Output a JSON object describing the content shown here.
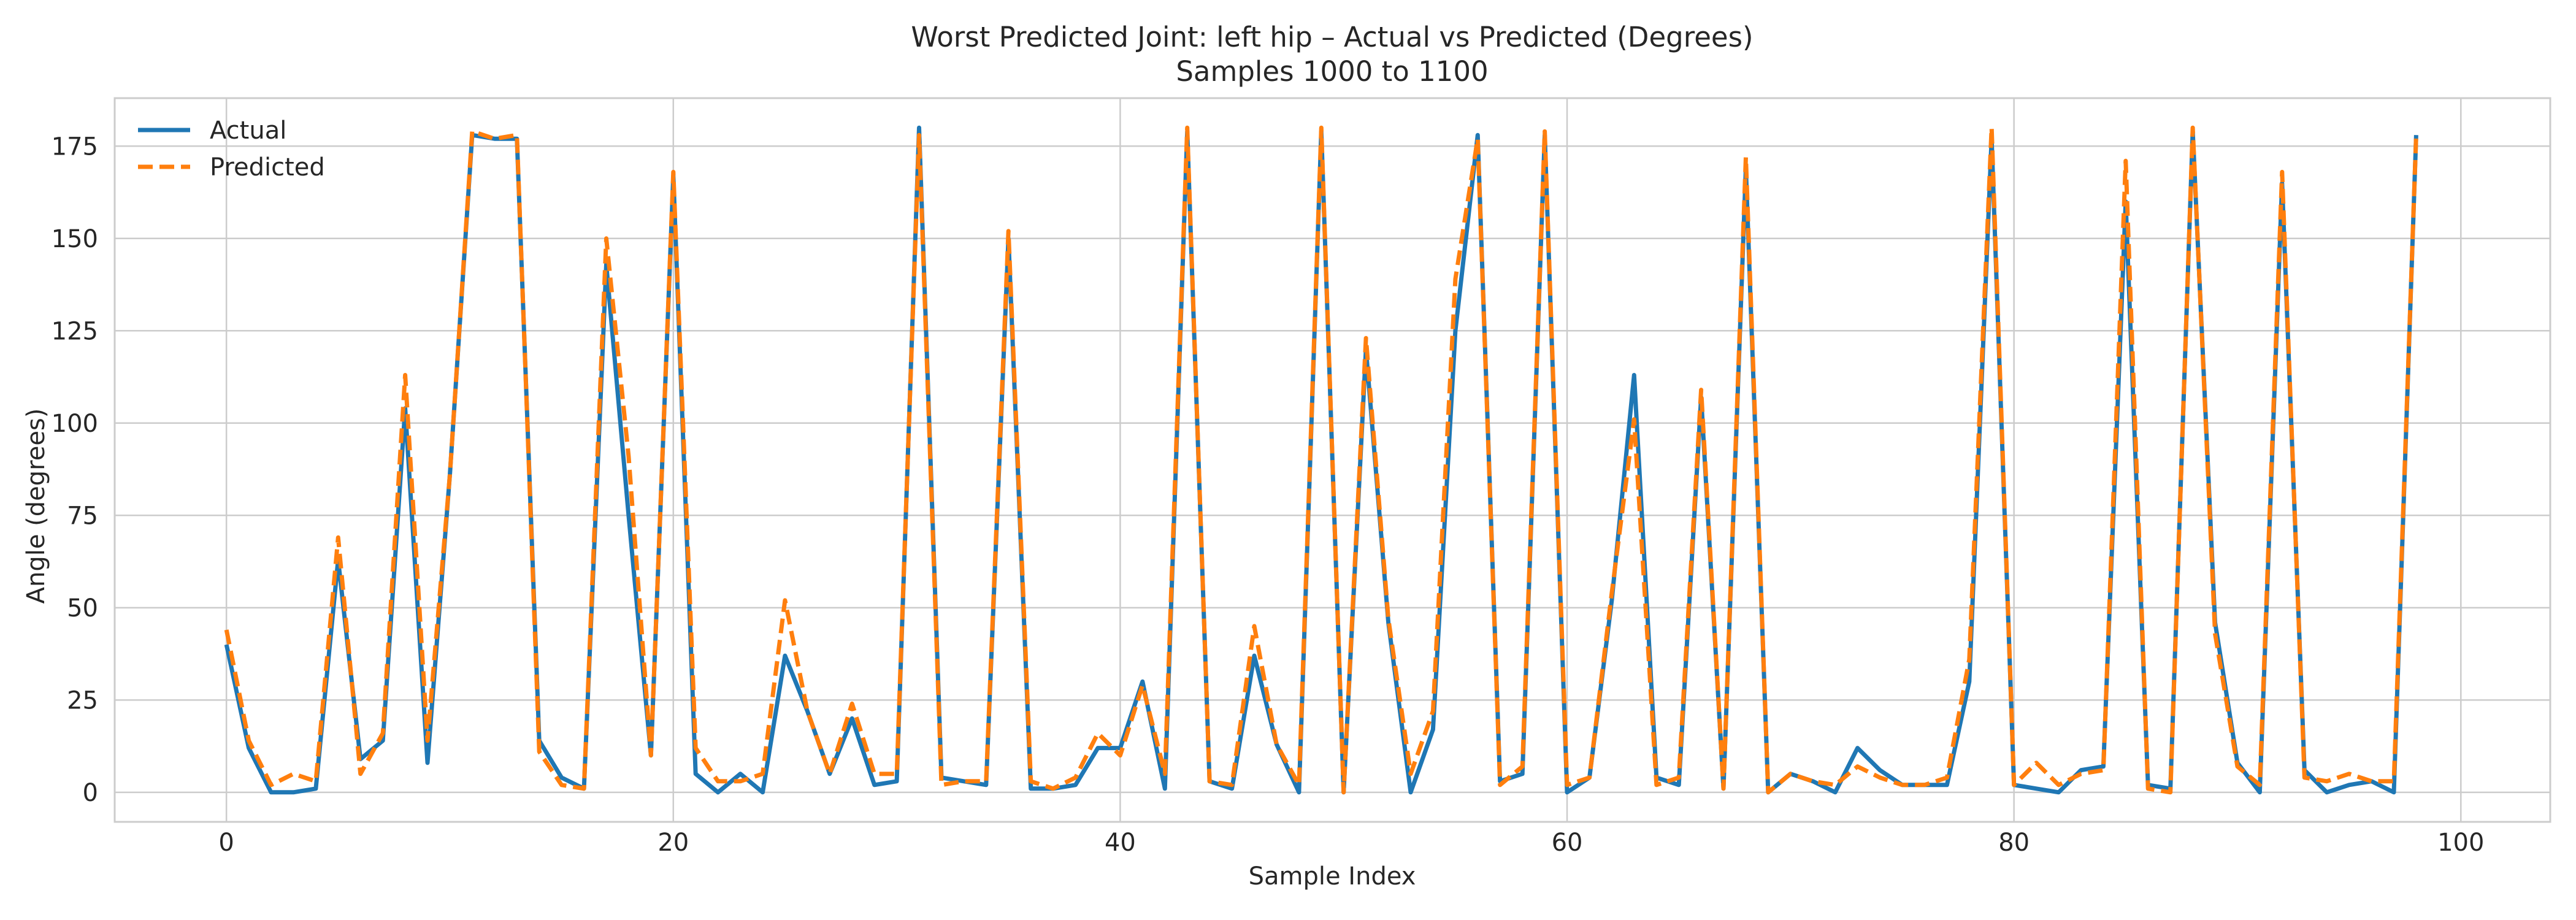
{
  "chart_data": {
    "type": "line",
    "title": "Worst Predicted Joint: left hip – Actual vs Predicted (Degrees)",
    "subtitle": "Samples 1000 to 1100",
    "xlabel": "Sample Index",
    "ylabel": "Angle (degrees)",
    "xlim": [
      -5,
      104
    ],
    "ylim": [
      -8,
      188
    ],
    "x_ticks": [
      0,
      20,
      40,
      60,
      80,
      100
    ],
    "y_ticks": [
      0,
      25,
      50,
      75,
      100,
      125,
      150,
      175
    ],
    "grid": true,
    "legend_position": "top-left",
    "colors": {
      "actual": "#1f77b4",
      "predicted": "#ff7f0e",
      "grid": "#cccccc",
      "frame": "#cccccc"
    },
    "series": [
      {
        "name": "Actual",
        "style": "solid",
        "values": [
          40,
          12,
          0,
          0,
          1,
          63,
          9,
          14,
          104,
          8,
          86,
          178,
          177,
          177,
          14,
          4,
          1,
          143,
          75,
          10,
          167,
          5,
          0,
          5,
          0,
          37,
          22,
          5,
          20,
          2,
          3,
          180,
          4,
          3,
          2,
          150,
          1,
          1,
          2,
          12,
          12,
          30,
          1,
          179,
          3,
          1,
          37,
          13,
          0,
          179,
          0,
          120,
          46,
          0,
          17,
          125,
          178,
          3,
          5,
          178,
          0,
          4,
          52,
          113,
          4,
          2,
          107,
          1,
          169,
          0,
          5,
          3,
          0,
          12,
          6,
          2,
          2,
          2,
          30,
          177,
          2,
          1,
          0,
          6,
          7,
          160,
          2,
          1,
          179,
          46,
          8,
          0,
          165,
          6,
          0,
          2,
          3,
          0,
          178
        ]
      },
      {
        "name": "Predicted",
        "style": "dashed",
        "values": [
          44,
          14,
          2,
          5,
          3,
          69,
          5,
          16,
          113,
          14,
          86,
          179,
          177,
          178,
          11,
          2,
          1,
          150,
          91,
          10,
          168,
          12,
          3,
          3,
          5,
          52,
          22,
          5,
          24,
          5,
          5,
          178,
          2,
          3,
          3,
          152,
          3,
          1,
          4,
          16,
          10,
          29,
          5,
          180,
          3,
          2,
          45,
          13,
          2,
          180,
          0,
          123,
          47,
          5,
          22,
          139,
          177,
          2,
          7,
          179,
          2,
          4,
          54,
          101,
          2,
          4,
          109,
          1,
          172,
          0,
          5,
          3,
          2,
          7,
          4,
          2,
          2,
          4,
          36,
          180,
          2,
          8,
          2,
          5,
          6,
          171,
          1,
          0,
          180,
          43,
          7,
          2,
          168,
          4,
          3,
          5,
          3,
          3,
          178
        ]
      }
    ]
  }
}
